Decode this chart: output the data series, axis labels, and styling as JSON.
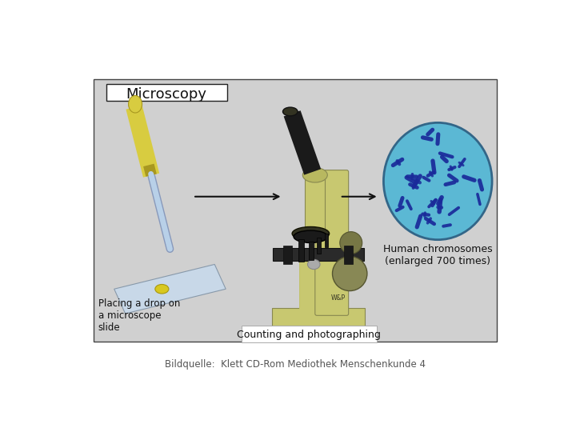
{
  "bg_gray": "#d0d0d0",
  "bg_white": "#ffffff",
  "panel_edge": "#444444",
  "title": "Microscopy",
  "title_fs": 13,
  "label_placing": "Placing a drop on\na microscope\nslide",
  "label_chrom": "Human chromosomes\n(enlarged 700 times)",
  "label_count": "Counting and photographing",
  "source": "Bildquelle:  Klett CD-Rom Mediothek Menschenkunde 4",
  "label_fs": 8.5,
  "source_fs": 8.5,
  "arrow_col": "#111111",
  "chrom_bg": "#5bb8d4",
  "chrom_col": "#1a2a9a",
  "micro_body": "#c8c870",
  "micro_dark": "#888850",
  "micro_black": "#1a1a1a",
  "slide_col": "#c8d8e8",
  "dropper_yellow": "#d8cc40",
  "dropper_tube": "#b8d0e8"
}
